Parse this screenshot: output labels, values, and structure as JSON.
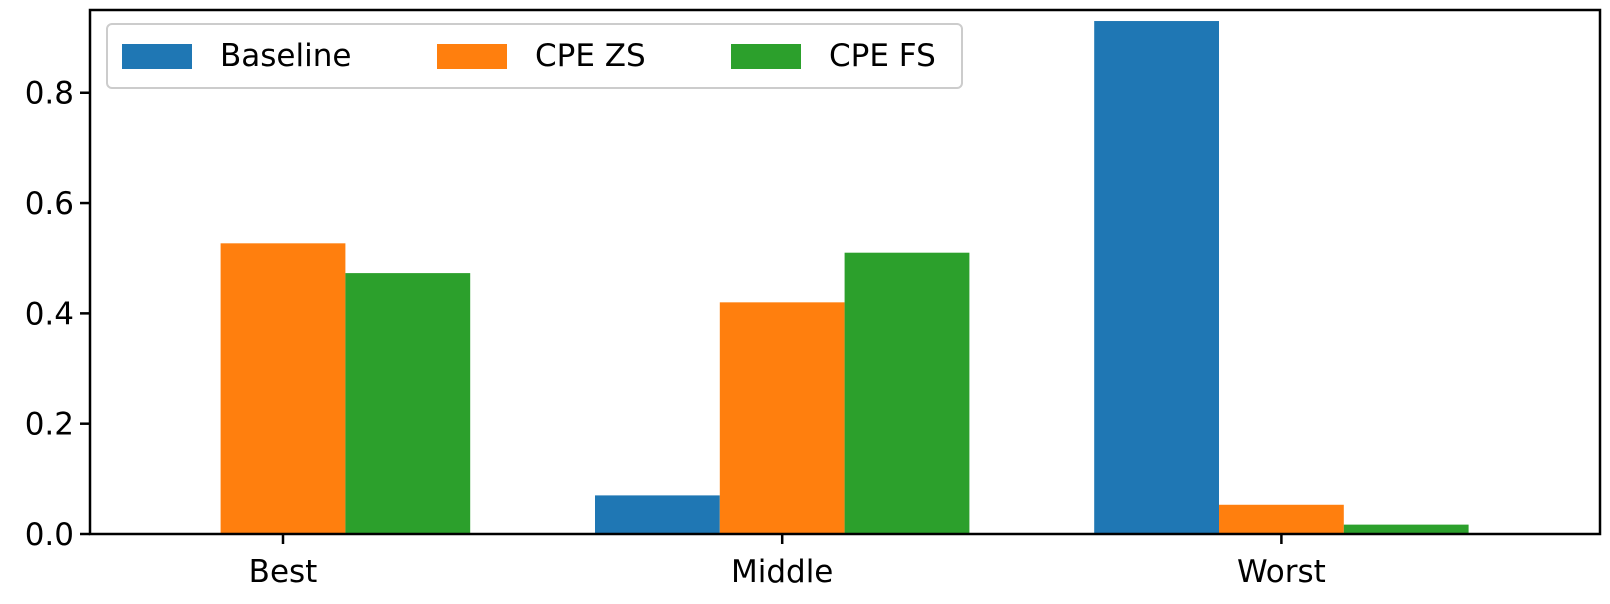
{
  "chart_data": {
    "type": "bar",
    "categories": [
      "Best",
      "Middle",
      "Worst"
    ],
    "series": [
      {
        "name": "Baseline",
        "color": "#1f77b4",
        "values": [
          0.0,
          0.07,
          0.93
        ]
      },
      {
        "name": "CPE ZS",
        "color": "#ff7f0e",
        "values": [
          0.527,
          0.42,
          0.053
        ]
      },
      {
        "name": "CPE FS",
        "color": "#2ca02c",
        "values": [
          0.473,
          0.51,
          0.017
        ]
      }
    ],
    "ylim": [
      0,
      0.95
    ],
    "yticks": [
      0.0,
      0.2,
      0.4,
      0.6,
      0.8
    ],
    "ytick_labels": [
      "0.0",
      "0.2",
      "0.4",
      "0.6",
      "0.8"
    ],
    "title": "",
    "xlabel": "",
    "ylabel": "",
    "grid": false,
    "legend_position": "top-left"
  }
}
